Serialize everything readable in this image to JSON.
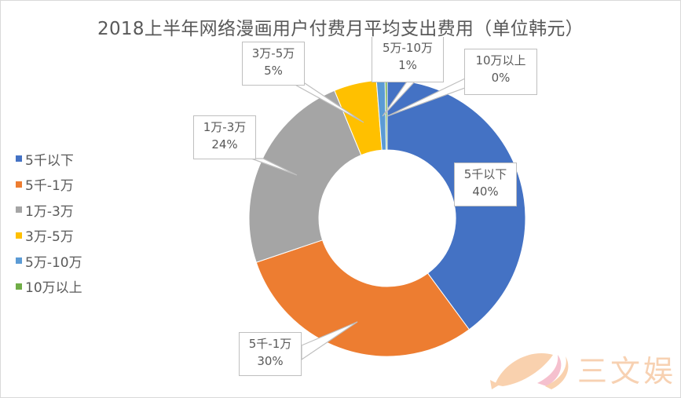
{
  "chart_data": {
    "type": "pie",
    "variant": "donut",
    "title": "2018上半年网络漫画用户付费月平均支出费用（单位韩元）",
    "categories": [
      "5千以下",
      "5千-1万",
      "1万-3万",
      "3万-5万",
      "5万-10万",
      "10万以上"
    ],
    "values": [
      40,
      30,
      24,
      5,
      1,
      0
    ],
    "value_labels": [
      "40%",
      "30%",
      "24%",
      "5%",
      "1%",
      "0%"
    ],
    "colors": [
      "#4472C4",
      "#ED7D31",
      "#A5A5A5",
      "#FFC000",
      "#5B9BD5",
      "#70AD47"
    ],
    "legend_position": "left",
    "start_angle_deg": 0,
    "direction": "clockwise"
  },
  "legend": {
    "items": [
      {
        "label": "5千以下",
        "color": "#4472C4"
      },
      {
        "label": "5千-1万",
        "color": "#ED7D31"
      },
      {
        "label": "1万-3万",
        "color": "#A5A5A5"
      },
      {
        "label": "3万-5万",
        "color": "#FFC000"
      },
      {
        "label": "5万-10万",
        "color": "#5B9BD5"
      },
      {
        "label": "10万以上",
        "color": "#70AD47"
      }
    ]
  },
  "callouts": [
    {
      "name": "5千以下",
      "pct": "40%"
    },
    {
      "name": "5千-1万",
      "pct": "30%"
    },
    {
      "name": "1万-3万",
      "pct": "24%"
    },
    {
      "name": "3万-5万",
      "pct": "5%"
    },
    {
      "name": "5万-10万",
      "pct": "1%"
    },
    {
      "name": "10万以上",
      "pct": "0%"
    }
  ],
  "watermark": {
    "text": "三文娱"
  }
}
